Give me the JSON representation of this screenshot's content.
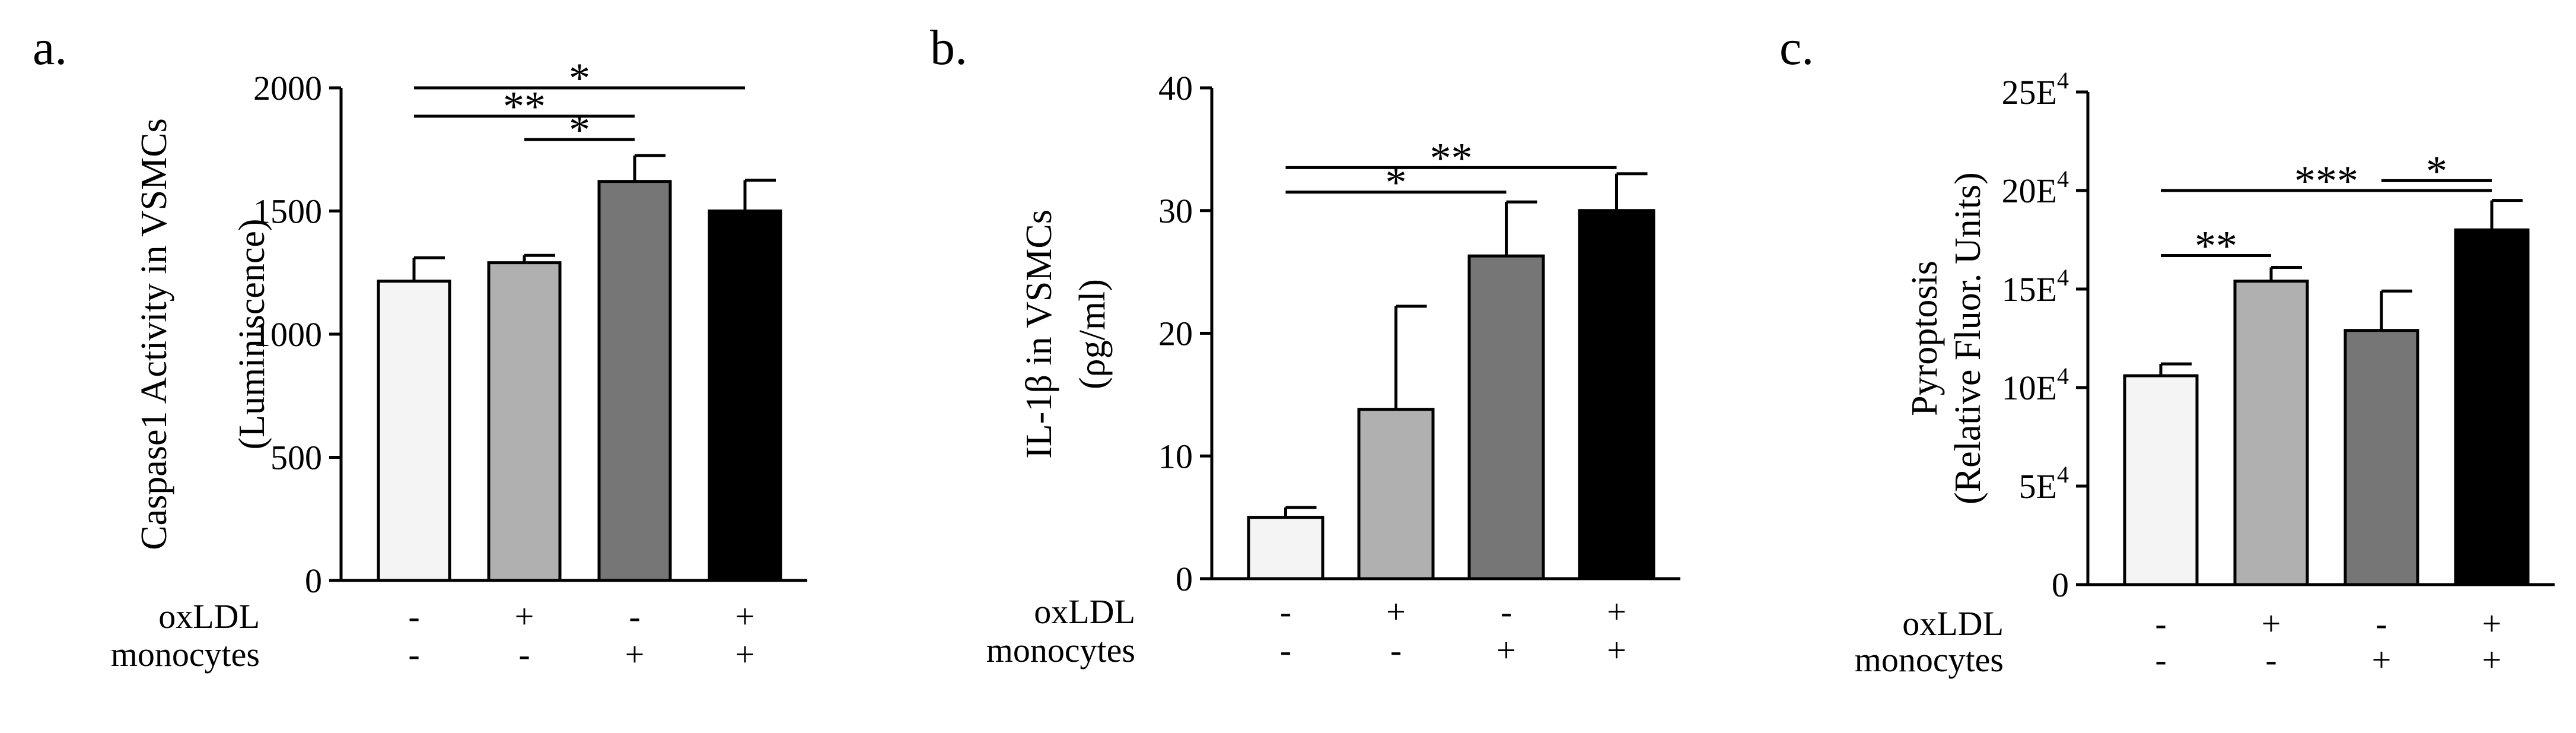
{
  "figure": {
    "conditions": {
      "labels": [
        "oxLDL",
        "monocytes"
      ],
      "oxLDL": [
        "-",
        "+",
        "-",
        "+"
      ],
      "monocytes": [
        "-",
        "-",
        "+",
        "+"
      ]
    },
    "bar_colors": [
      "#f4f4f4",
      "#b0b0b0",
      "#767676",
      "#000000"
    ],
    "panels": [
      {
        "letter": "a.",
        "ylabel_lines": [
          "Caspase1 Activity in VSMCs",
          "(Luminiscence)"
        ]
      },
      {
        "letter": "b.",
        "ylabel_lines": [
          "IL-1β in VSMCs",
          "(ρg/ml)"
        ]
      },
      {
        "letter": "c.",
        "ylabel_lines": [
          "Pyroptosis",
          "(Relative Fluor. Units)"
        ]
      }
    ]
  },
  "chart_data": [
    {
      "type": "bar",
      "title": "",
      "xlabel": "",
      "ylabel": "Caspase1 Activity in VSMCs (Luminiscence)",
      "ylim": [
        0,
        2000
      ],
      "yticks": [
        0,
        500,
        1000,
        1500,
        2000
      ],
      "ytick_labels": [
        "0",
        "500",
        "1000",
        "1500",
        "2000"
      ],
      "categories": [
        "oxLDL - / monocytes -",
        "oxLDL + / monocytes -",
        "oxLDL - / monocytes +",
        "oxLDL + / monocytes +"
      ],
      "values": [
        1215,
        1290,
        1620,
        1500
      ],
      "errors": [
        95,
        30,
        105,
        125
      ],
      "significance": [
        {
          "from": 0,
          "to": 3,
          "label": "*",
          "y": 2000
        },
        {
          "from": 0,
          "to": 2,
          "label": "**",
          "y": 1885
        },
        {
          "from": 1,
          "to": 2,
          "label": "*",
          "y": 1790
        }
      ]
    },
    {
      "type": "bar",
      "title": "",
      "xlabel": "",
      "ylabel": "IL-1β in VSMCs (ρg/ml)",
      "ylim": [
        0,
        40
      ],
      "yticks": [
        0,
        10,
        20,
        30,
        40
      ],
      "ytick_labels": [
        "0",
        "10",
        "20",
        "30",
        "40"
      ],
      "categories": [
        "oxLDL - / monocytes -",
        "oxLDL + / monocytes -",
        "oxLDL - / monocytes +",
        "oxLDL + / monocytes +"
      ],
      "values": [
        5.0,
        13.8,
        26.3,
        30.0
      ],
      "errors": [
        0.8,
        8.4,
        4.4,
        3.0
      ],
      "significance": [
        {
          "from": 0,
          "to": 3,
          "label": "**",
          "y": 33.5
        },
        {
          "from": 0,
          "to": 2,
          "label": "*",
          "y": 31.5
        }
      ]
    },
    {
      "type": "bar",
      "title": "",
      "xlabel": "",
      "ylabel": "Pyroptosis (Relative Fluor. Units)",
      "ylim": [
        0,
        250000
      ],
      "yticks": [
        0,
        50000,
        100000,
        150000,
        200000,
        250000
      ],
      "ytick_labels": [
        {
          "base": "0",
          "exp": ""
        },
        {
          "base": "5E",
          "exp": "4"
        },
        {
          "base": "10E",
          "exp": "4"
        },
        {
          "base": "15E",
          "exp": "4"
        },
        {
          "base": "20E",
          "exp": "4"
        },
        {
          "base": "25E",
          "exp": "4"
        }
      ],
      "categories": [
        "oxLDL - / monocytes -",
        "oxLDL + / monocytes -",
        "oxLDL - / monocytes +",
        "oxLDL + / monocytes +"
      ],
      "values": [
        106000,
        154000,
        129000,
        180000
      ],
      "errors": [
        6000,
        7000,
        20000,
        15000
      ],
      "significance": [
        {
          "from": 0,
          "to": 1,
          "label": "**",
          "y": 167000
        },
        {
          "from": 0,
          "to": 3,
          "label": "***",
          "y": 200000
        },
        {
          "from": 2,
          "to": 3,
          "label": "*",
          "y": 205000
        }
      ]
    }
  ]
}
